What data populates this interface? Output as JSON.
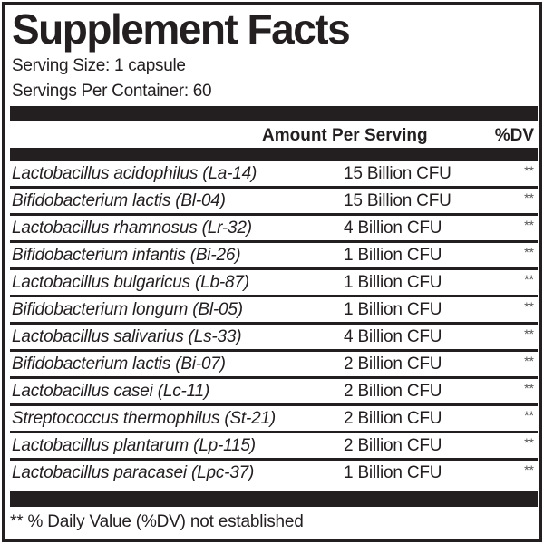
{
  "title": "Supplement Facts",
  "serving_size": "Serving Size: 1 capsule",
  "servings_per_container": "Servings Per Container: 60",
  "header": {
    "amount": "Amount Per Serving",
    "dv": "%DV"
  },
  "rows": [
    {
      "name": "Lactobacillus acidophilus (La-14)",
      "amount": "15 Billion CFU",
      "dv": "**"
    },
    {
      "name": "Bifidobacterium lactis (Bl-04)",
      "amount": "15 Billion CFU",
      "dv": "**"
    },
    {
      "name": "Lactobacillus rhamnosus (Lr-32)",
      "amount": "4 Billion CFU",
      "dv": "**"
    },
    {
      "name": "Bifidobacterium infantis (Bi-26)",
      "amount": "1 Billion CFU",
      "dv": "**"
    },
    {
      "name": "Lactobacillus bulgaricus (Lb-87)",
      "amount": "1 Billion CFU",
      "dv": "**"
    },
    {
      "name": "Bifidobacterium longum (Bl-05)",
      "amount": "1 Billion CFU",
      "dv": "**"
    },
    {
      "name": "Lactobacillus salivarius (Ls-33)",
      "amount": "4 Billion CFU",
      "dv": "**"
    },
    {
      "name": "Bifidobacterium lactis (Bi-07)",
      "amount": "2 Billion CFU",
      "dv": "**"
    },
    {
      "name": "Lactobacillus casei (Lc-11)",
      "amount": "2 Billion CFU",
      "dv": "**"
    },
    {
      "name": "Streptococcus thermophilus (St-21)",
      "amount": "2 Billion CFU",
      "dv": "**"
    },
    {
      "name": "Lactobacillus plantarum (Lp-115)",
      "amount": "2 Billion CFU",
      "dv": "**"
    },
    {
      "name": "Lactobacillus paracasei (Lpc-37)",
      "amount": "1 Billion CFU",
      "dv": "**"
    }
  ],
  "footnote": "** % Daily Value (%DV) not established"
}
